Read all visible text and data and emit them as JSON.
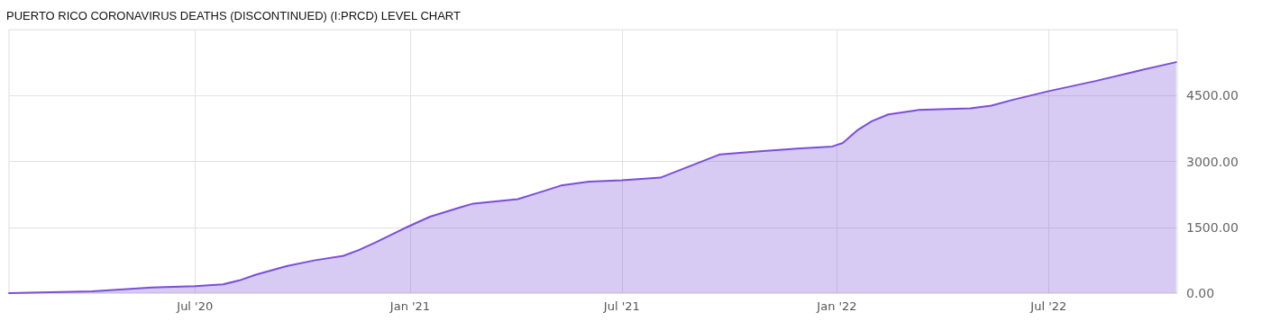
{
  "chart_data": {
    "type": "area",
    "title": "PUERTO RICO CORONAVIRUS DEATHS (DISCONTINUED) (I:PRCD) LEVEL CHART",
    "x": [
      "2020-01-24",
      "2020-04-04",
      "2020-04-28",
      "2020-05-25",
      "2020-07-01",
      "2020-07-25",
      "2020-08-08",
      "2020-08-22",
      "2020-09-18",
      "2020-10-12",
      "2020-11-05",
      "2020-11-18",
      "2020-12-02",
      "2020-12-29",
      "2021-01-18",
      "2021-02-10",
      "2021-02-24",
      "2021-04-03",
      "2021-04-20",
      "2021-05-10",
      "2021-06-03",
      "2021-07-01",
      "2021-08-03",
      "2021-08-29",
      "2021-09-23",
      "2021-10-22",
      "2021-11-28",
      "2021-12-28",
      "2022-01-06",
      "2022-01-19",
      "2022-01-31",
      "2022-02-14",
      "2022-03-11",
      "2022-04-25",
      "2022-05-13",
      "2022-05-31",
      "2022-07-01",
      "2022-08-10",
      "2022-09-15",
      "2022-10-18"
    ],
    "series": [
      {
        "color": "#7b4fd6",
        "values": [
          0,
          40,
          80,
          130,
          160,
          200,
          290,
          420,
          620,
          750,
          850,
          980,
          1150,
          1500,
          1740,
          1930,
          2040,
          2140,
          2280,
          2450,
          2540,
          2570,
          2630,
          2900,
          3160,
          3220,
          3290,
          3340,
          3420,
          3720,
          3920,
          4070,
          4170,
          4210,
          4270,
          4400,
          4600,
          4830,
          5060,
          5260
        ]
      }
    ],
    "xlim": [
      "2020-01-24",
      "2022-10-19"
    ],
    "xticks": [
      {
        "value": "2020-07-01",
        "label": "Jul '20"
      },
      {
        "value": "2021-01-01",
        "label": "Jan '21"
      },
      {
        "value": "2021-07-01",
        "label": "Jul '21"
      },
      {
        "value": "2022-01-01",
        "label": "Jan '22"
      },
      {
        "value": "2022-07-01",
        "label": "Jul '22"
      }
    ],
    "ylim": [
      0,
      6000
    ],
    "yticks": [
      {
        "value": 0,
        "label": "0.00"
      },
      {
        "value": 1500,
        "label": "1500.00"
      },
      {
        "value": 3000,
        "label": "3000.00"
      },
      {
        "value": 4500,
        "label": "4500.00"
      }
    ],
    "grid": true,
    "marker": "none",
    "line_style": "solid"
  }
}
